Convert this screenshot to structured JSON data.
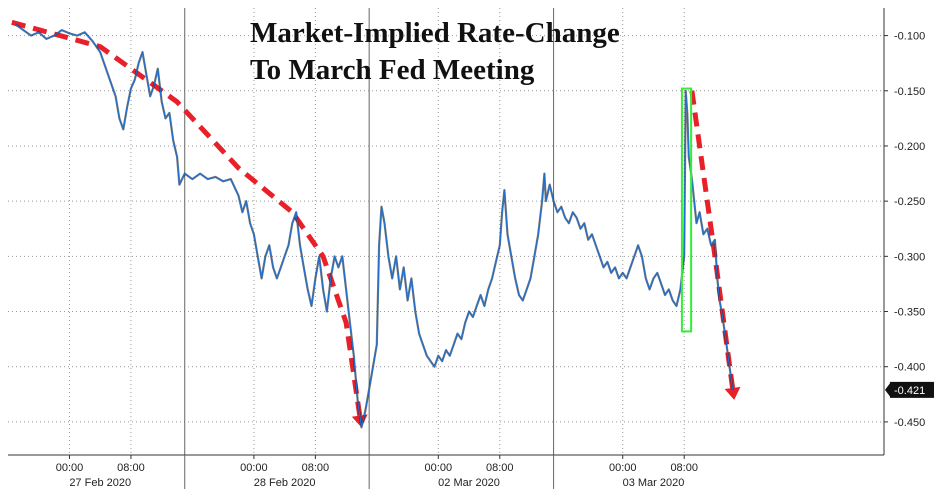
{
  "chart_data": {
    "type": "line",
    "title_lines": [
      "Market-Implied Rate-Change",
      "To March Fed Meeting"
    ],
    "xlabel": "",
    "ylabel": "",
    "ylim": [
      -0.48,
      -0.075
    ],
    "y_ticks": [
      -0.1,
      -0.15,
      -0.2,
      -0.25,
      -0.3,
      -0.35,
      -0.4,
      -0.45
    ],
    "y_tick_labels": [
      "-0.100",
      "-0.150",
      "-0.200",
      "-0.250",
      "-0.300",
      "-0.350",
      "-0.400",
      "-0.450"
    ],
    "x_range_hours": [
      -8,
      106
    ],
    "x_time_ticks": [
      {
        "t": 0,
        "label": "00:00"
      },
      {
        "t": 8,
        "label": "08:00"
      },
      {
        "t": 24,
        "label": "00:00"
      },
      {
        "t": 32,
        "label": "08:00"
      },
      {
        "t": 48,
        "label": "00:00"
      },
      {
        "t": 56,
        "label": "08:00"
      },
      {
        "t": 72,
        "label": "00:00"
      },
      {
        "t": 80,
        "label": "08:00"
      }
    ],
    "x_day_labels": [
      {
        "t": 4,
        "label": "27 Feb 2020"
      },
      {
        "t": 28,
        "label": "28 Feb 2020"
      },
      {
        "t": 52,
        "label": "02 Mar 2020"
      },
      {
        "t": 76,
        "label": "03 Mar 2020"
      }
    ],
    "x_day_separators": [
      15,
      39,
      63
    ],
    "last_value": -0.421,
    "last_value_label": "-0.421",
    "series": [
      {
        "color": "#1f6fd0",
        "points": [
          [
            -7.0,
            -0.09
          ],
          [
            -6.0,
            -0.095
          ],
          [
            -5.0,
            -0.1
          ],
          [
            -4.0,
            -0.097
          ],
          [
            -3.0,
            -0.103
          ],
          [
            -2.0,
            -0.1
          ],
          [
            -1.0,
            -0.095
          ],
          [
            0.0,
            -0.098
          ],
          [
            1.0,
            -0.1
          ],
          [
            2.0,
            -0.097
          ],
          [
            3.0,
            -0.105
          ],
          [
            4.0,
            -0.115
          ],
          [
            5.0,
            -0.135
          ],
          [
            6.0,
            -0.155
          ],
          [
            6.5,
            -0.175
          ],
          [
            7.0,
            -0.185
          ],
          [
            7.5,
            -0.165
          ],
          [
            8.0,
            -0.148
          ],
          [
            8.5,
            -0.14
          ],
          [
            9.0,
            -0.125
          ],
          [
            9.5,
            -0.115
          ],
          [
            10.0,
            -0.135
          ],
          [
            10.5,
            -0.155
          ],
          [
            11.0,
            -0.145
          ],
          [
            11.5,
            -0.13
          ],
          [
            12.0,
            -0.16
          ],
          [
            12.5,
            -0.175
          ],
          [
            13.0,
            -0.17
          ],
          [
            13.5,
            -0.195
          ],
          [
            14.0,
            -0.21
          ],
          [
            14.3,
            -0.235
          ],
          [
            15.0,
            -0.225
          ],
          [
            16.0,
            -0.23
          ],
          [
            17.0,
            -0.225
          ],
          [
            18.0,
            -0.23
          ],
          [
            19.0,
            -0.228
          ],
          [
            20.0,
            -0.232
          ],
          [
            21.0,
            -0.23
          ],
          [
            22.0,
            -0.245
          ],
          [
            22.5,
            -0.26
          ],
          [
            23.0,
            -0.25
          ],
          [
            23.5,
            -0.27
          ],
          [
            24.0,
            -0.28
          ],
          [
            24.5,
            -0.3
          ],
          [
            25.0,
            -0.32
          ],
          [
            25.5,
            -0.3
          ],
          [
            26.0,
            -0.29
          ],
          [
            26.5,
            -0.31
          ],
          [
            27.0,
            -0.32
          ],
          [
            27.5,
            -0.31
          ],
          [
            28.0,
            -0.3
          ],
          [
            28.5,
            -0.29
          ],
          [
            29.0,
            -0.27
          ],
          [
            29.5,
            -0.26
          ],
          [
            30.0,
            -0.29
          ],
          [
            30.5,
            -0.31
          ],
          [
            31.0,
            -0.33
          ],
          [
            31.5,
            -0.345
          ],
          [
            32.0,
            -0.32
          ],
          [
            32.5,
            -0.3
          ],
          [
            33.0,
            -0.33
          ],
          [
            33.5,
            -0.35
          ],
          [
            34.0,
            -0.32
          ],
          [
            34.5,
            -0.3
          ],
          [
            35.0,
            -0.31
          ],
          [
            35.5,
            -0.3
          ],
          [
            36.0,
            -0.33
          ],
          [
            36.5,
            -0.36
          ],
          [
            37.0,
            -0.39
          ],
          [
            37.5,
            -0.43
          ],
          [
            38.0,
            -0.455
          ],
          [
            38.5,
            -0.44
          ],
          [
            39.0,
            -0.42
          ],
          [
            39.5,
            -0.4
          ],
          [
            40.0,
            -0.38
          ],
          [
            40.3,
            -0.29
          ],
          [
            40.6,
            -0.255
          ],
          [
            41.0,
            -0.27
          ],
          [
            41.5,
            -0.3
          ],
          [
            42.0,
            -0.32
          ],
          [
            42.5,
            -0.3
          ],
          [
            43.0,
            -0.33
          ],
          [
            43.5,
            -0.31
          ],
          [
            44.0,
            -0.34
          ],
          [
            44.5,
            -0.32
          ],
          [
            45.0,
            -0.35
          ],
          [
            45.5,
            -0.37
          ],
          [
            46.0,
            -0.38
          ],
          [
            46.5,
            -0.39
          ],
          [
            47.0,
            -0.395
          ],
          [
            47.5,
            -0.4
          ],
          [
            48.0,
            -0.39
          ],
          [
            48.5,
            -0.395
          ],
          [
            49.0,
            -0.385
          ],
          [
            49.5,
            -0.39
          ],
          [
            50.0,
            -0.38
          ],
          [
            50.5,
            -0.37
          ],
          [
            51.0,
            -0.375
          ],
          [
            51.5,
            -0.36
          ],
          [
            52.0,
            -0.35
          ],
          [
            52.5,
            -0.355
          ],
          [
            53.0,
            -0.345
          ],
          [
            53.5,
            -0.335
          ],
          [
            54.0,
            -0.345
          ],
          [
            54.5,
            -0.33
          ],
          [
            55.0,
            -0.32
          ],
          [
            55.5,
            -0.305
          ],
          [
            56.0,
            -0.29
          ],
          [
            56.3,
            -0.26
          ],
          [
            56.6,
            -0.24
          ],
          [
            57.0,
            -0.28
          ],
          [
            57.5,
            -0.3
          ],
          [
            58.0,
            -0.32
          ],
          [
            58.5,
            -0.335
          ],
          [
            59.0,
            -0.34
          ],
          [
            59.5,
            -0.33
          ],
          [
            60.0,
            -0.32
          ],
          [
            60.5,
            -0.3
          ],
          [
            61.0,
            -0.28
          ],
          [
            61.5,
            -0.25
          ],
          [
            61.8,
            -0.225
          ],
          [
            62.0,
            -0.25
          ],
          [
            62.5,
            -0.235
          ],
          [
            63.0,
            -0.25
          ],
          [
            63.5,
            -0.26
          ],
          [
            64.0,
            -0.255
          ],
          [
            64.5,
            -0.265
          ],
          [
            65.0,
            -0.27
          ],
          [
            65.5,
            -0.26
          ],
          [
            66.0,
            -0.265
          ],
          [
            66.5,
            -0.275
          ],
          [
            67.0,
            -0.27
          ],
          [
            67.5,
            -0.285
          ],
          [
            68.0,
            -0.28
          ],
          [
            68.5,
            -0.29
          ],
          [
            69.0,
            -0.3
          ],
          [
            69.5,
            -0.31
          ],
          [
            70.0,
            -0.305
          ],
          [
            70.5,
            -0.315
          ],
          [
            71.0,
            -0.31
          ],
          [
            71.5,
            -0.32
          ],
          [
            72.0,
            -0.315
          ],
          [
            72.5,
            -0.32
          ],
          [
            73.0,
            -0.31
          ],
          [
            73.5,
            -0.3
          ],
          [
            74.0,
            -0.29
          ],
          [
            74.5,
            -0.3
          ],
          [
            75.0,
            -0.32
          ],
          [
            75.5,
            -0.33
          ],
          [
            76.0,
            -0.32
          ],
          [
            76.5,
            -0.315
          ],
          [
            77.0,
            -0.325
          ],
          [
            77.5,
            -0.335
          ],
          [
            78.0,
            -0.33
          ],
          [
            78.5,
            -0.34
          ],
          [
            79.0,
            -0.345
          ],
          [
            79.5,
            -0.33
          ],
          [
            80.0,
            -0.3
          ],
          [
            80.2,
            -0.15
          ],
          [
            80.4,
            -0.17
          ],
          [
            80.6,
            -0.21
          ],
          [
            81.0,
            -0.23
          ],
          [
            81.3,
            -0.25
          ],
          [
            81.6,
            -0.27
          ],
          [
            82.0,
            -0.26
          ],
          [
            82.5,
            -0.28
          ],
          [
            83.0,
            -0.275
          ],
          [
            83.5,
            -0.29
          ],
          [
            84.0,
            -0.285
          ],
          [
            84.3,
            -0.32
          ],
          [
            84.6,
            -0.34
          ],
          [
            85.0,
            -0.355
          ],
          [
            85.5,
            -0.38
          ],
          [
            86.0,
            -0.405
          ],
          [
            86.3,
            -0.421
          ]
        ]
      }
    ],
    "annotations": {
      "highlight_box": {
        "x0": 79.7,
        "x1": 80.9,
        "y0": -0.148,
        "y1": -0.368,
        "color": "#33ee33"
      },
      "arrow_color": "#e8202a",
      "arrows": [
        {
          "points": [
            [
              -7.5,
              -0.088
            ],
            [
              4,
              -0.11
            ],
            [
              14,
              -0.16
            ],
            [
              22,
              -0.22
            ],
            [
              29,
              -0.26
            ],
            [
              33,
              -0.3
            ],
            [
              36,
              -0.36
            ],
            [
              38,
              -0.455
            ]
          ]
        },
        {
          "points": [
            [
              81,
              -0.15
            ],
            [
              84,
              -0.3
            ],
            [
              86.5,
              -0.43
            ]
          ]
        }
      ]
    }
  }
}
